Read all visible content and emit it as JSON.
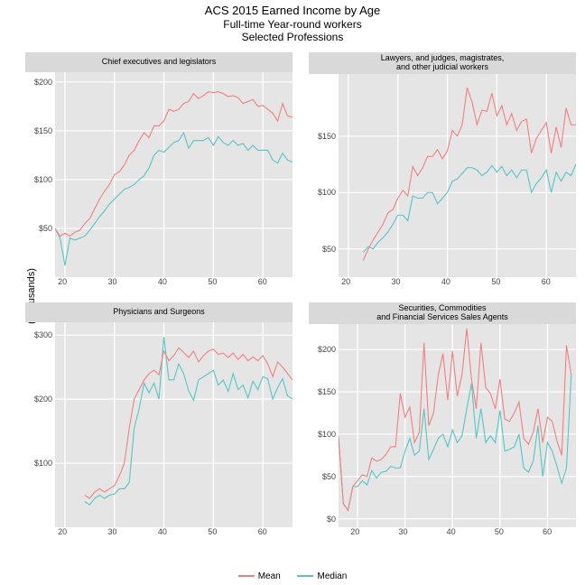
{
  "title": {
    "line1": "ACS 2015 Earned Income by Age",
    "line2": "Full-time Year-round workers",
    "line3": "Selected Professions"
  },
  "yaxis_label": "(Thousands)",
  "colors": {
    "mean": "#f47f7f",
    "median": "#55c6c6",
    "panel_bg": "#e5e5e5",
    "grid": "#ffffff",
    "strip_bg": "#d9d9d9"
  },
  "line_width": 1.1,
  "legend": {
    "mean_label": "Mean",
    "median_label": "Median"
  },
  "panels": [
    {
      "id": "exec",
      "title_lines": [
        "Chief executives and legislators"
      ],
      "xlim": [
        18,
        66
      ],
      "ylim": [
        0,
        210
      ],
      "yticks": [
        50,
        100,
        150,
        200
      ],
      "ytick_labels": [
        "$50",
        "$100",
        "$150",
        "$200"
      ],
      "xticks": [
        20,
        30,
        40,
        50,
        60
      ],
      "mean": [
        50,
        42,
        45,
        42,
        46,
        48,
        55,
        60,
        70,
        80,
        88,
        95,
        105,
        108,
        115,
        125,
        130,
        140,
        148,
        143,
        155,
        155,
        160,
        172,
        170,
        172,
        178,
        180,
        188,
        183,
        186,
        190,
        189,
        190,
        188,
        185,
        186,
        184,
        178,
        180,
        182,
        175,
        176,
        172,
        168,
        160,
        178,
        165,
        164
      ],
      "median": [
        50,
        40,
        12,
        40,
        38,
        40,
        42,
        48,
        55,
        62,
        68,
        75,
        80,
        85,
        90,
        92,
        95,
        100,
        104,
        112,
        125,
        130,
        128,
        133,
        138,
        140,
        148,
        132,
        140,
        140,
        140,
        143,
        135,
        144,
        138,
        135,
        140,
        135,
        137,
        130,
        135,
        130,
        130,
        130,
        120,
        117,
        127,
        120,
        118
      ]
    },
    {
      "id": "lawyers",
      "title_lines": [
        "Lawyers, and judges, magistrates,",
        "and other judicial workers"
      ],
      "xlim": [
        18,
        66
      ],
      "ylim": [
        25,
        205
      ],
      "yticks": [
        50,
        100,
        150
      ],
      "ytick_labels": [
        "$50",
        "$100",
        "$150"
      ],
      "xticks": [
        20,
        30,
        40,
        50,
        60
      ],
      "mean": [
        null,
        null,
        null,
        null,
        null,
        40,
        50,
        58,
        65,
        72,
        82,
        85,
        95,
        102,
        97,
        123,
        115,
        122,
        132,
        132,
        138,
        130,
        137,
        155,
        150,
        160,
        193,
        180,
        160,
        173,
        172,
        188,
        168,
        177,
        160,
        170,
        155,
        163,
        165,
        135,
        148,
        155,
        162,
        135,
        158,
        140,
        175,
        160,
        160
      ],
      "median": [
        null,
        null,
        null,
        null,
        null,
        47,
        52,
        50,
        56,
        60,
        65,
        72,
        80,
        80,
        75,
        97,
        95,
        95,
        100,
        100,
        90,
        95,
        100,
        110,
        112,
        117,
        122,
        122,
        120,
        115,
        118,
        124,
        118,
        123,
        115,
        120,
        113,
        120,
        120,
        100,
        108,
        113,
        120,
        100,
        118,
        110,
        118,
        115,
        125
      ]
    },
    {
      "id": "phys",
      "title_lines": [
        "Physicians and Surgeons"
      ],
      "xlim": [
        18,
        66
      ],
      "ylim": [
        0,
        320
      ],
      "yticks": [
        100,
        200,
        300
      ],
      "ytick_labels": [
        "$100",
        "$200",
        "$300"
      ],
      "xticks": [
        20,
        30,
        40,
        50,
        60
      ],
      "mean": [
        null,
        null,
        null,
        null,
        null,
        null,
        50,
        45,
        55,
        60,
        55,
        60,
        65,
        80,
        100,
        155,
        200,
        215,
        230,
        240,
        245,
        238,
        275,
        260,
        268,
        280,
        273,
        265,
        275,
        258,
        268,
        275,
        278,
        270,
        272,
        265,
        272,
        262,
        270,
        260,
        266,
        260,
        268,
        255,
        235,
        258,
        250,
        240,
        230
      ],
      "median": [
        null,
        null,
        null,
        null,
        null,
        null,
        40,
        35,
        45,
        50,
        45,
        50,
        52,
        60,
        60,
        70,
        155,
        185,
        225,
        210,
        225,
        200,
        297,
        230,
        230,
        255,
        240,
        213,
        198,
        230,
        235,
        240,
        245,
        222,
        230,
        212,
        240,
        215,
        222,
        202,
        228,
        215,
        235,
        232,
        200,
        218,
        232,
        205,
        200
      ]
    },
    {
      "id": "fin",
      "title_lines": [
        "Securities, Commodities",
        "and Financial Services Sales Agents"
      ],
      "xlim": [
        16,
        66
      ],
      "ylim": [
        -10,
        230
      ],
      "yticks": [
        0,
        50,
        100,
        150,
        200
      ],
      "ytick_labels": [
        "$0",
        "$50",
        "$100",
        "$150",
        "$200"
      ],
      "xticks": [
        20,
        30,
        40,
        50,
        60
      ],
      "mean": [
        97,
        18,
        10,
        38,
        45,
        52,
        50,
        72,
        68,
        70,
        76,
        85,
        85,
        148,
        120,
        132,
        90,
        102,
        208,
        110,
        125,
        170,
        195,
        140,
        198,
        145,
        170,
        225,
        165,
        130,
        208,
        155,
        148,
        130,
        165,
        118,
        115,
        125,
        138,
        95,
        88,
        102,
        130,
        90,
        120,
        115,
        92,
        75,
        205,
        170,
        null
      ],
      "median": [
        97,
        18,
        10,
        38,
        38,
        45,
        40,
        57,
        48,
        55,
        56,
        62,
        60,
        60,
        80,
        95,
        75,
        80,
        130,
        70,
        82,
        95,
        100,
        85,
        105,
        90,
        98,
        130,
        160,
        95,
        130,
        90,
        98,
        90,
        128,
        80,
        82,
        85,
        100,
        60,
        55,
        68,
        110,
        50,
        90,
        80,
        62,
        42,
        60,
        170,
        null
      ]
    }
  ]
}
